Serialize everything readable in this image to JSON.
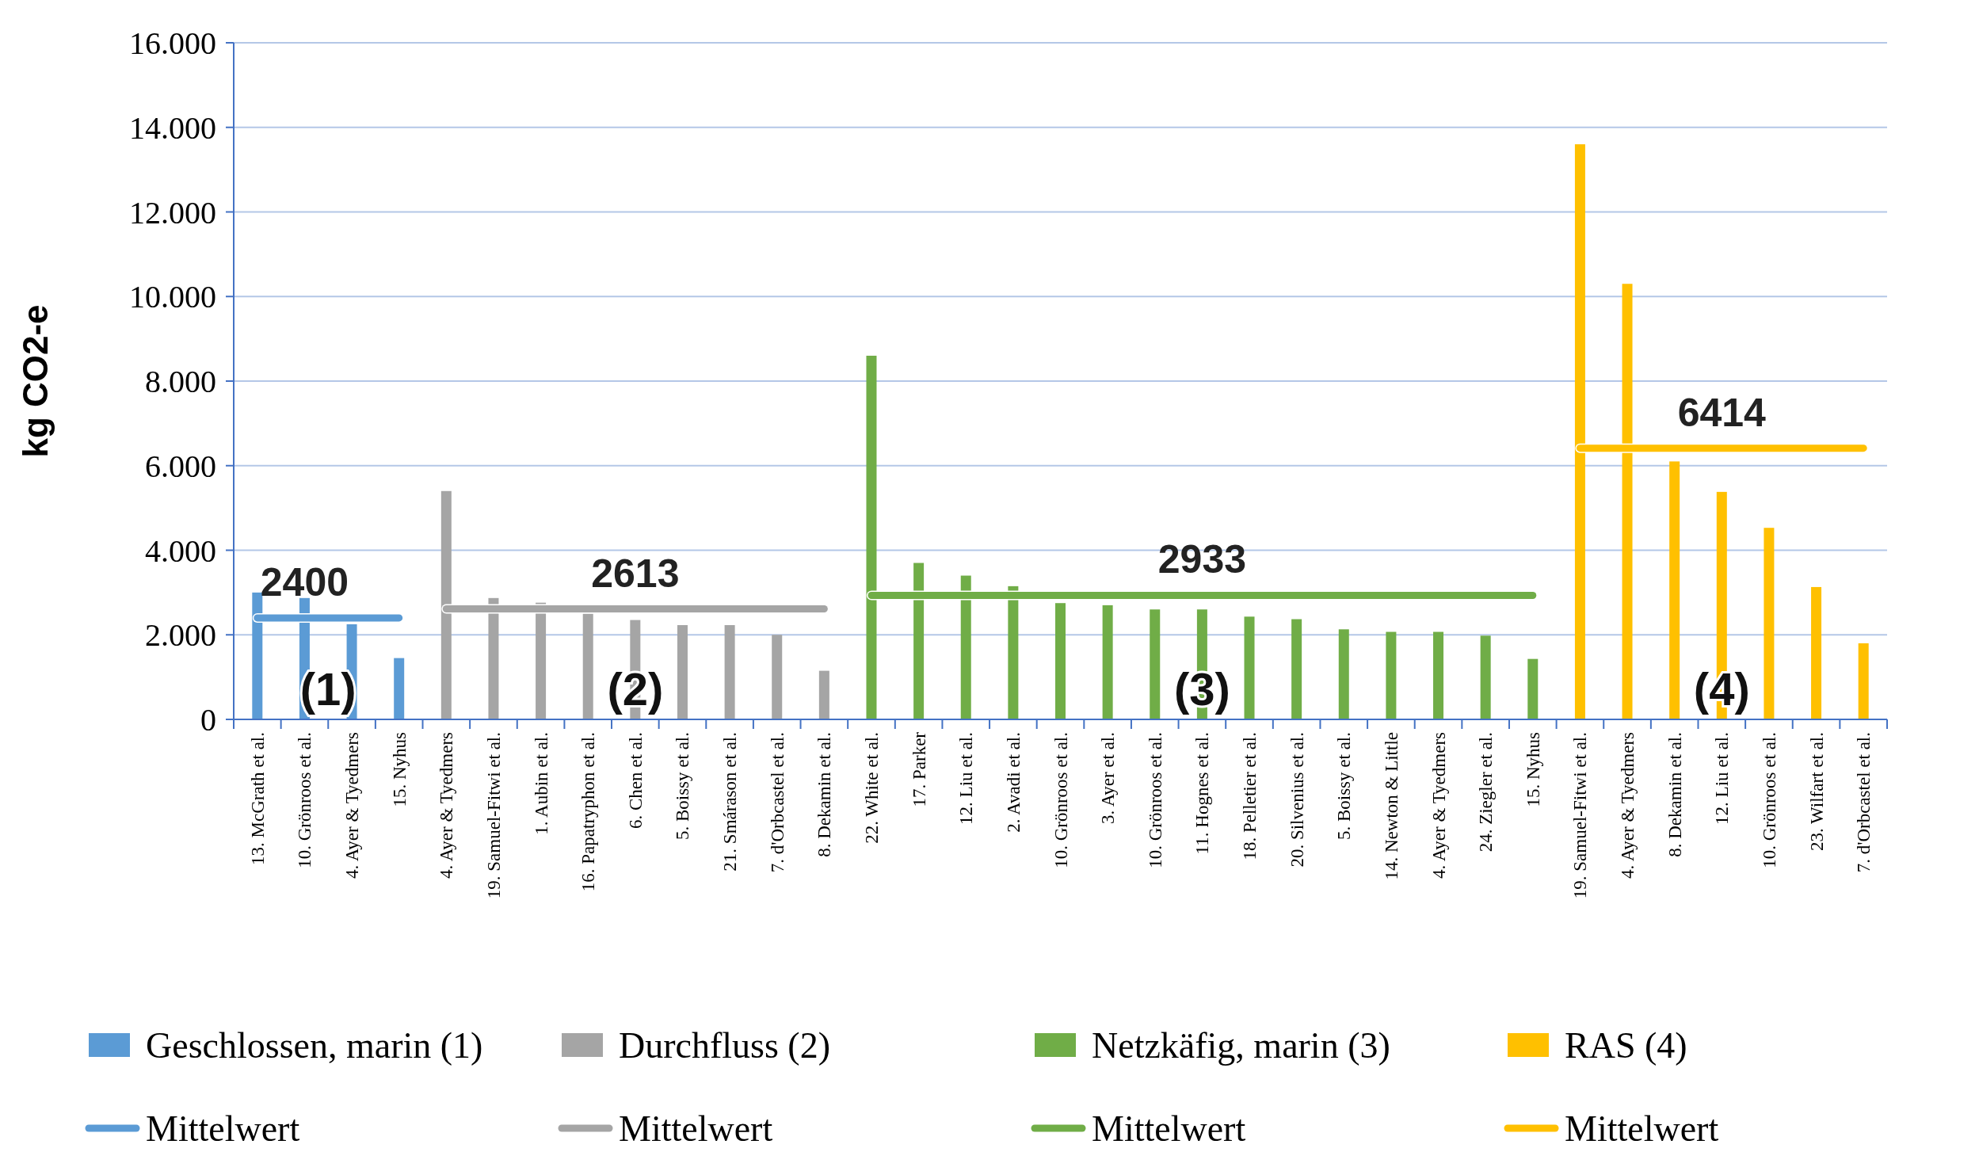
{
  "chart_data": {
    "type": "bar",
    "ylabel": "kg CO2-e",
    "categories": [
      "13. McGrath et al.",
      "10. Grönroos et al.",
      "4. Ayer & Tyedmers",
      "15. Nyhus",
      "4. Ayer & Tyedmers",
      "19. Samuel-Fitwi et al.",
      "1. Aubin et al.",
      "16. Papatryphon et al.",
      "6. Chen et al.",
      "5. Boissy et al.",
      "21. Smárason et al.",
      "7. d'Orbcastel et al.",
      "8. Dekamin et al.",
      "22. White et al.",
      "17. Parker",
      "12. Liu et al.",
      "2. Avadi et al.",
      "10. Grönroos et al.",
      "3. Ayer et al.",
      "10. Grönroos et al.",
      "11. Hognes et al.",
      "18. Pelletier et al.",
      "20. Silvenius et al.",
      "5. Boissy et al.",
      "14. Newton & Little",
      "4. Ayer & Tyedmers",
      "24. Ziegler et al.",
      "15. Nyhus",
      "19. Samuel-Fitwi et al.",
      "4. Ayer & Tyedmers",
      "8. Dekamin et al.",
      "12. Liu et al.",
      "10. Grönroos et al.",
      "23. Wilfart et al.",
      "7. d'Orbcastel et al."
    ],
    "series": [
      {
        "name": "Geschlossen, marin (1)",
        "color": "#5b9bd5",
        "values": [
          3000,
          2870,
          2250,
          1450,
          null,
          null,
          null,
          null,
          null,
          null,
          null,
          null,
          null,
          null,
          null,
          null,
          null,
          null,
          null,
          null,
          null,
          null,
          null,
          null,
          null,
          null,
          null,
          null,
          null,
          null,
          null,
          null,
          null,
          null,
          null
        ]
      },
      {
        "name": "Durchfluss (2)",
        "color": "#a5a5a5",
        "values": [
          null,
          null,
          null,
          null,
          5400,
          2870,
          2760,
          2500,
          2350,
          2230,
          2230,
          2000,
          1150,
          null,
          null,
          null,
          null,
          null,
          null,
          null,
          null,
          null,
          null,
          null,
          null,
          null,
          null,
          null,
          null,
          null,
          null,
          null,
          null,
          null,
          null
        ]
      },
      {
        "name": "Netzkäfig, marin (3)",
        "color": "#70ad47",
        "values": [
          null,
          null,
          null,
          null,
          null,
          null,
          null,
          null,
          null,
          null,
          null,
          null,
          null,
          8600,
          3700,
          3400,
          3150,
          2750,
          2700,
          2600,
          2600,
          2430,
          2370,
          2130,
          2070,
          2070,
          1980,
          1430,
          null,
          null,
          null,
          null,
          null,
          null,
          null
        ]
      },
      {
        "name": "RAS (4)",
        "color": "#ffc000",
        "values": [
          null,
          null,
          null,
          null,
          null,
          null,
          null,
          null,
          null,
          null,
          null,
          null,
          null,
          null,
          null,
          null,
          null,
          null,
          null,
          null,
          null,
          null,
          null,
          null,
          null,
          null,
          null,
          null,
          13600,
          10300,
          6100,
          5380,
          4530,
          3130,
          1800
        ]
      },
      {
        "name": "Mittelwert",
        "type": "line",
        "color": "#5b9bd5",
        "values": [
          2400,
          2400,
          2400,
          2400,
          null,
          null,
          null,
          null,
          null,
          null,
          null,
          null,
          null,
          null,
          null,
          null,
          null,
          null,
          null,
          null,
          null,
          null,
          null,
          null,
          null,
          null,
          null,
          null,
          null,
          null,
          null,
          null,
          null,
          null,
          null
        ],
        "value_labels": [
          null,
          "2400",
          null,
          null,
          null,
          null,
          null,
          null,
          null,
          null,
          null,
          null,
          null,
          null,
          null,
          null,
          null,
          null,
          null,
          null,
          null,
          null,
          null,
          null,
          null,
          null,
          null,
          null,
          null,
          null,
          null,
          null,
          null,
          null,
          null
        ]
      },
      {
        "name": "Mittelwert",
        "type": "line",
        "color": "#a5a5a5",
        "values": [
          null,
          null,
          null,
          null,
          2613,
          2613,
          2613,
          2613,
          2613,
          2613,
          2613,
          2613,
          2613,
          null,
          null,
          null,
          null,
          null,
          null,
          null,
          null,
          null,
          null,
          null,
          null,
          null,
          null,
          null,
          null,
          null,
          null,
          null,
          null,
          null,
          null
        ],
        "value_labels": [
          null,
          null,
          null,
          null,
          null,
          null,
          null,
          null,
          "2613",
          null,
          null,
          null,
          null,
          null,
          null,
          null,
          null,
          null,
          null,
          null,
          null,
          null,
          null,
          null,
          null,
          null,
          null,
          null,
          null,
          null,
          null,
          null,
          null,
          null,
          null
        ]
      },
      {
        "name": "Mittelwert",
        "type": "line",
        "color": "#70ad47",
        "values": [
          null,
          null,
          null,
          null,
          null,
          null,
          null,
          null,
          null,
          null,
          null,
          null,
          null,
          2933,
          2933,
          2933,
          2933,
          2933,
          2933,
          2933,
          2933,
          2933,
          2933,
          2933,
          2933,
          2933,
          2933,
          2933,
          null,
          null,
          null,
          null,
          null,
          null,
          null
        ],
        "value_labels": [
          null,
          null,
          null,
          null,
          null,
          null,
          null,
          null,
          null,
          null,
          null,
          null,
          null,
          null,
          null,
          null,
          null,
          null,
          null,
          null,
          "2933",
          null,
          null,
          null,
          null,
          null,
          null,
          null,
          null,
          null,
          null,
          null,
          null,
          null,
          null
        ]
      },
      {
        "name": "Mittelwert",
        "type": "line",
        "color": "#ffc000",
        "values": [
          null,
          null,
          null,
          null,
          null,
          null,
          null,
          null,
          null,
          null,
          null,
          null,
          null,
          null,
          null,
          null,
          null,
          null,
          null,
          null,
          null,
          null,
          null,
          null,
          null,
          null,
          null,
          null,
          6414,
          6414,
          6414,
          6414,
          6414,
          6414,
          6414
        ],
        "value_labels": [
          null,
          null,
          null,
          null,
          null,
          null,
          null,
          null,
          null,
          null,
          null,
          null,
          null,
          null,
          null,
          null,
          null,
          null,
          null,
          null,
          null,
          null,
          null,
          null,
          null,
          null,
          null,
          null,
          null,
          null,
          null,
          "6414",
          null,
          null,
          null
        ]
      }
    ],
    "ylim": [
      0,
      16000
    ],
    "yticks": [
      0,
      {
        "value": 2000,
        "label": "2.000"
      },
      {
        "value": 4000,
        "label": "4.000"
      },
      {
        "value": 6000,
        "label": "6.000"
      },
      {
        "value": 8000,
        "label": "8.000"
      },
      {
        "value": 10000,
        "label": "10.000"
      },
      {
        "value": 12000,
        "label": "12.000"
      },
      {
        "value": 14000,
        "label": "14.000"
      },
      {
        "value": 16000,
        "label": "16.000"
      }
    ],
    "grid": true,
    "legend": "bottom",
    "annotations": [
      "(1)",
      "(2)",
      "(3)",
      "(4)"
    ]
  }
}
